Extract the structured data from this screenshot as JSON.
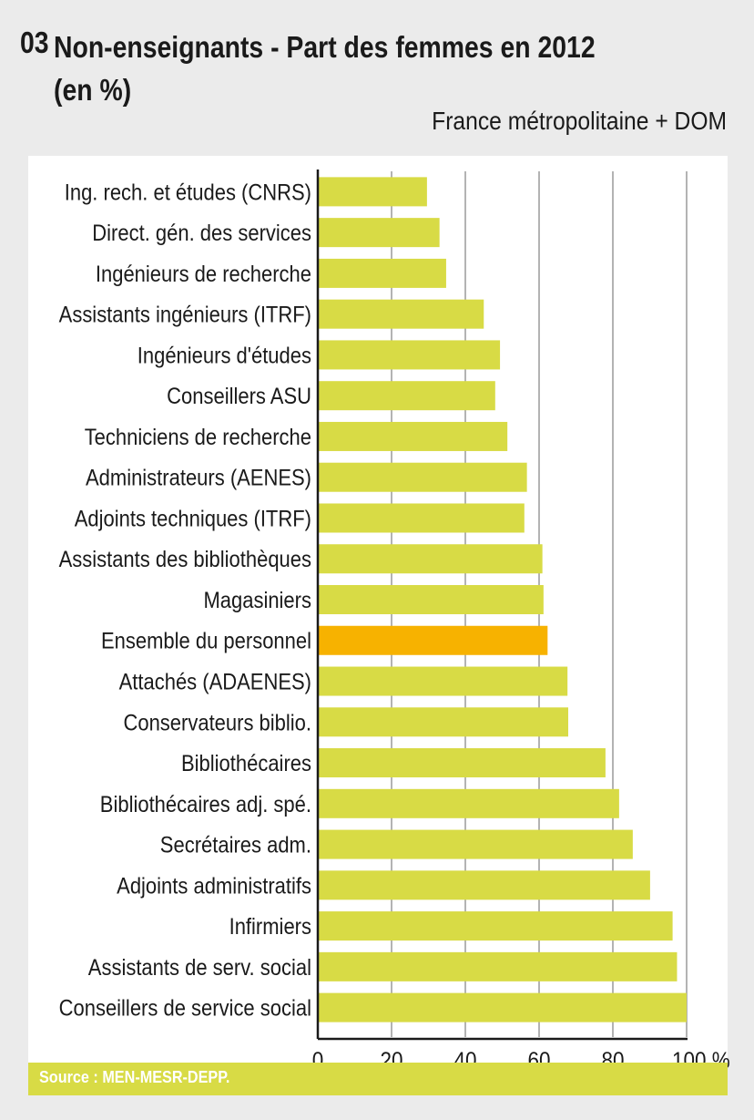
{
  "header": {
    "number": "03",
    "title_line1": "Non-enseignants - Part des femmes en 2012",
    "title_line2": "(en %)",
    "subtitle": "France métropolitaine + DOM"
  },
  "footer": {
    "source": "Source : MEN-MESR-DEPP."
  },
  "colors": {
    "bar": "#d8db45",
    "highlight_bar": "#f7b200",
    "grid": "#b3b3b3",
    "axis": "#1a1a1a",
    "background": "#ebebeb",
    "panel": "#ffffff"
  },
  "chart_data": {
    "type": "bar",
    "orientation": "horizontal",
    "title": "Non-enseignants - Part des femmes en 2012 (en %)",
    "subtitle": "France métropolitaine + DOM",
    "xlabel": "%",
    "ylabel": "",
    "xlim": [
      0,
      100
    ],
    "xticks": [
      "0",
      "20",
      "40",
      "60",
      "80",
      "100 %"
    ],
    "xtick_values": [
      0,
      20,
      40,
      60,
      80,
      100
    ],
    "grid": true,
    "legend": "none",
    "categories": [
      "Ing. rech. et études (CNRS)",
      "Direct. gén. des services",
      "Ingénieurs de recherche",
      "Assistants ingénieurs (ITRF)",
      "Ingénieurs d'études",
      "Conseillers ASU",
      "Techniciens de recherche",
      "Administrateurs (AENES)",
      "Adjoints techniques (ITRF)",
      "Assistants des bibliothèques",
      "Magasiniers",
      "Ensemble du personnel",
      "Attachés (ADAENES)",
      "Conservateurs biblio.",
      "Bibliothécaires",
      "Bibliothécaires adj. spé.",
      "Secrétaires adm.",
      "Adjoints administratifs",
      "Infirmiers",
      "Assistants de serv. social",
      "Conseillers de service social"
    ],
    "values": [
      29.6,
      33.0,
      34.8,
      45.0,
      49.4,
      48.1,
      51.4,
      56.7,
      56.0,
      60.9,
      61.2,
      62.3,
      67.7,
      67.9,
      78.0,
      81.7,
      85.4,
      90.1,
      96.2,
      97.4,
      100.0
    ],
    "highlight": [
      "Ensemble du personnel"
    ],
    "source": "Source : MEN-MESR-DEPP."
  }
}
